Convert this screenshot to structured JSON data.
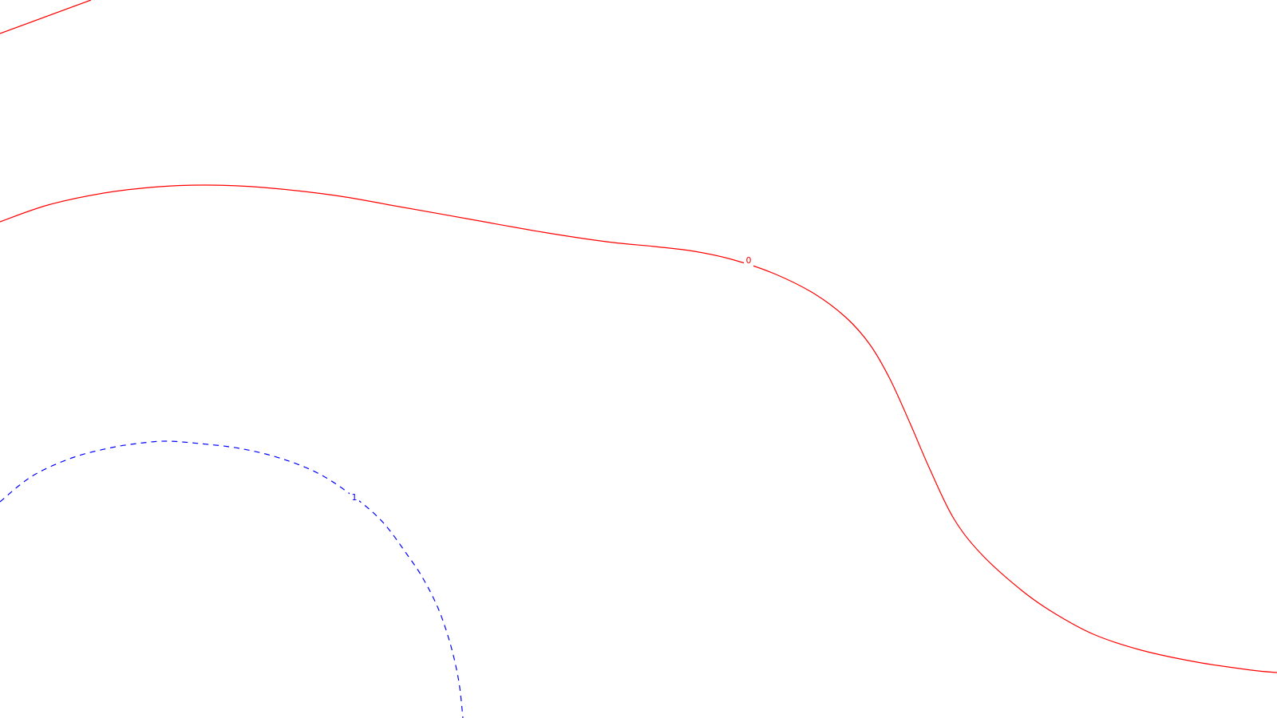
{
  "chart_data": {
    "type": "contour",
    "background": "#ffffff",
    "grid": false,
    "legend": "none",
    "levels": [
      {
        "level": "0",
        "color": "#ff0000",
        "linestyle": "solid",
        "segments": [
          {
            "id": "top-left-fragment",
            "points": [
              [
                0,
                42
              ],
              [
                114,
                0
              ]
            ],
            "label": null
          },
          {
            "id": "main-curve",
            "points": [
              [
                0,
                278
              ],
              [
                60,
                257
              ],
              [
                130,
                242
              ],
              [
                200,
                234
              ],
              [
                260,
                232
              ],
              [
                330,
                235
              ],
              [
                420,
                245
              ],
              [
                500,
                259
              ],
              [
                590,
                275
              ],
              [
                680,
                291
              ],
              [
                760,
                303
              ],
              [
                820,
                309
              ],
              [
                870,
                315
              ],
              [
                920,
                326
              ],
              [
                970,
                343
              ],
              [
                1020,
                368
              ],
              [
                1060,
                398
              ],
              [
                1090,
                432
              ],
              [
                1115,
                475
              ],
              [
                1140,
                530
              ],
              [
                1165,
                588
              ],
              [
                1195,
                650
              ],
              [
                1230,
                695
              ],
              [
                1280,
                740
              ],
              [
                1320,
                768
              ],
              [
                1370,
                795
              ],
              [
                1430,
                815
              ],
              [
                1500,
                830
              ],
              [
                1568,
                840
              ],
              [
                1600,
                843
              ]
            ],
            "label": {
              "text": "0",
              "at": [
                938,
                327
              ]
            }
          }
        ]
      },
      {
        "level": "1",
        "color": "#0000ff",
        "linestyle": "dashed",
        "segments": [
          {
            "id": "bottom-left-circle",
            "points": [
              [
                0,
                629
              ],
              [
                40,
                597
              ],
              [
                90,
                574
              ],
              [
                140,
                561
              ],
              [
                180,
                555
              ],
              [
                210,
                553
              ],
              [
                250,
                556
              ],
              [
                300,
                562
              ],
              [
                350,
                574
              ],
              [
                400,
                594
              ],
              [
                445,
                624
              ],
              [
                480,
                655
              ],
              [
                510,
                695
              ],
              [
                530,
                725
              ],
              [
                550,
                765
              ],
              [
                565,
                810
              ],
              [
                575,
                855
              ],
              [
                580,
                900
              ]
            ],
            "label": {
              "text": "1",
              "at": [
                444,
                624
              ]
            }
          }
        ]
      }
    ]
  }
}
